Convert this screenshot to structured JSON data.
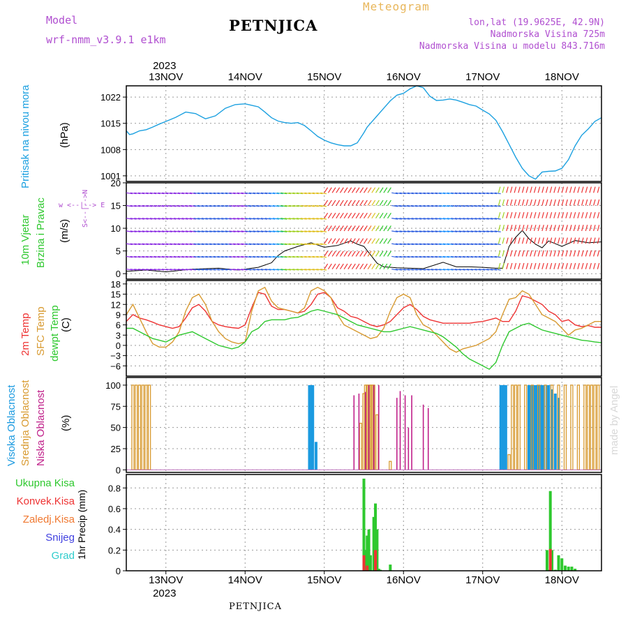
{
  "header": {
    "model_label": "Model",
    "model_name": "wrf-nmm_v3.9.1  e1km",
    "title": "PETNJICA",
    "meteogram_label": "Meteogram",
    "lonlat": "lon,lat (19.9625E, 42.9N)",
    "altitude": "Nadmorska Visina 725m",
    "model_altitude": "Nadmorska Visina u modelu 843.716m"
  },
  "footer": {
    "station": "PETNJICA",
    "signature": "made by Angel"
  },
  "time_axis": {
    "year": "2023",
    "days": [
      "13NOV",
      "14NOV",
      "15NOV",
      "16NOV",
      "17NOV",
      "18NOV"
    ],
    "day_offsets_h": [
      12,
      36,
      60,
      84,
      108,
      132
    ],
    "range_h": [
      0,
      144
    ]
  },
  "panel_labels": {
    "pressure": {
      "name": "Pritisak na nivou mora",
      "unit": "(hPa)"
    },
    "wind": {
      "name1": "10m Vjetar",
      "name2": "Brzina i Pravac",
      "unit": "(m/s)",
      "compass": "w <--|--> E",
      "compass2": "S<--|-->N"
    },
    "temp": {
      "l1": "2m Temp",
      "l2": "SFC Temp",
      "l3": "dewpt Temp",
      "unit": "(C)"
    },
    "cloud": {
      "l1": "Visoka Oblacnost",
      "l2": "Srednja Oblacnost",
      "l3": "Niska Oblacnost",
      "unit": "(%)"
    },
    "precip": {
      "unit": "1hr Precip (mm)",
      "legend": [
        "Ukupna Kisa",
        "Konvek.Kisa",
        "Zaledj.Kisa",
        "Snijeg",
        "Grad"
      ]
    }
  },
  "colors": {
    "pressure": "#1ba0e0",
    "t2m": "#ee3333",
    "tsfc": "#d89a30",
    "dewpt": "#2ec82e",
    "cloud_high": "#1b9ae0",
    "cloud_mid": "#d89a30",
    "cloud_low": "#c0208a",
    "precip_total": "#2ec82e",
    "precip_conv": "#ee3333",
    "precip_frz": "#f07830",
    "snow": "#4040e0",
    "hail": "#2ecccc",
    "purple_label": "#b04fd0"
  },
  "chart_data": [
    {
      "type": "line",
      "title": "Pritisak na nivou mora",
      "ylabel": "(hPa)",
      "ylim": [
        999.5,
        1025
      ],
      "yticks": [
        1001,
        1008,
        1015,
        1022
      ],
      "grid": true,
      "series": [
        {
          "name": "Pritisak na nivou mora",
          "x": [
            0,
            1,
            2,
            4,
            6,
            8,
            10,
            12,
            15,
            18,
            21,
            24,
            27,
            30,
            33,
            36,
            38,
            40,
            42,
            44,
            46,
            48,
            50,
            52,
            54,
            56,
            58,
            60,
            62,
            64,
            66,
            68,
            70,
            72,
            73,
            74,
            76,
            78,
            80,
            82,
            84,
            86,
            88,
            90,
            92,
            94,
            96,
            98,
            100,
            102,
            104,
            106,
            108,
            110,
            112,
            114,
            116,
            118,
            120,
            122,
            124,
            126,
            128,
            130,
            132,
            134,
            136,
            138,
            140,
            142,
            144
          ],
          "values": [
            1013,
            1012,
            1012.2,
            1013,
            1013.3,
            1014,
            1014.8,
            1015.5,
            1016.6,
            1018,
            1017.6,
            1016.2,
            1017,
            1019,
            1020,
            1020.2,
            1019.8,
            1019.4,
            1018,
            1016.5,
            1015.6,
            1015.2,
            1015,
            1015.2,
            1014.4,
            1013,
            1011.5,
            1010.5,
            1009.8,
            1009.3,
            1009,
            1009,
            1009.8,
            1012.5,
            1014,
            1015,
            1017,
            1019,
            1021,
            1022.5,
            1023,
            1024.2,
            1025,
            1024.5,
            1022.2,
            1021.1,
            1021.2,
            1021.5,
            1021.2,
            1020.6,
            1020,
            1019.6,
            1018.5,
            1017.5,
            1015.8,
            1012.8,
            1009.4,
            1006,
            1003,
            1001,
            1000.1,
            1002,
            1002.2,
            1002.3,
            1003,
            1005.3,
            1009,
            1011.8,
            1013.5,
            1015.5,
            1016.5
          ]
        }
      ]
    },
    {
      "type": "line",
      "title": "10m Vjetar Brzina i Pravac",
      "ylabel": "(m/s)",
      "ylim": [
        -1.2,
        20
      ],
      "yticks": [
        0,
        5,
        10,
        15,
        20
      ],
      "grid": true,
      "series": [
        {
          "name": "speed",
          "x": [
            0,
            6,
            12,
            20,
            28,
            34,
            40,
            44,
            46,
            48,
            52,
            56,
            60,
            64,
            68,
            70,
            72,
            76,
            78,
            82,
            86,
            90,
            96,
            100,
            104,
            108,
            112,
            114,
            116,
            118,
            120,
            122,
            124,
            126,
            128,
            132,
            136,
            140,
            144
          ],
          "values": [
            0.5,
            0.8,
            0.4,
            1,
            1.2,
            0.8,
            1.4,
            2.4,
            4,
            5,
            6,
            6.8,
            5.8,
            6.2,
            7.2,
            6.5,
            6,
            2.3,
            1.5,
            1.3,
            1.2,
            1.1,
            2.5,
            1.5,
            1.5,
            1.4,
            1.2,
            1.2,
            6,
            8,
            9.5,
            7.7,
            6.5,
            5.7,
            7.2,
            6,
            7.3,
            6.8,
            7
          ]
        }
      ]
    },
    {
      "type": "line",
      "title": "Temperatura",
      "ylabel": "(C)",
      "ylim": [
        -9,
        19
      ],
      "yticks": [
        -6,
        -3,
        0,
        3,
        6,
        9,
        12,
        15,
        18
      ],
      "grid": true,
      "series": [
        {
          "name": "2m Temp",
          "x": [
            0,
            2,
            4,
            6,
            8,
            10,
            12,
            14,
            16,
            18,
            20,
            22,
            24,
            26,
            28,
            30,
            32,
            34,
            36,
            38,
            40,
            42,
            44,
            46,
            48,
            50,
            52,
            54,
            56,
            58,
            60,
            62,
            64,
            66,
            68,
            70,
            72,
            74,
            76,
            78,
            80,
            82,
            84,
            86,
            88,
            90,
            92,
            94,
            96,
            98,
            100,
            102,
            104,
            106,
            108,
            110,
            112,
            114,
            116,
            118,
            120,
            122,
            124,
            126,
            128,
            130,
            132,
            134,
            136,
            138,
            140,
            142,
            144
          ],
          "values": [
            7,
            9,
            8,
            7.5,
            6.8,
            6,
            5.5,
            5,
            5.5,
            8,
            11,
            12,
            10,
            7,
            6,
            5.5,
            5.2,
            5,
            6,
            11,
            15.5,
            15,
            11.5,
            10.5,
            10.5,
            10,
            9.5,
            10,
            12,
            15,
            15.5,
            14,
            11,
            10,
            8.5,
            8,
            7,
            6,
            5.5,
            6,
            7,
            9,
            11,
            12,
            10.5,
            8.5,
            7.5,
            7,
            6.5,
            6.5,
            6.5,
            6.5,
            6.5,
            6.8,
            7,
            7.5,
            8,
            7,
            7,
            10,
            14.5,
            14,
            13,
            12,
            10,
            9,
            7,
            7.5,
            6,
            5.5,
            5.8,
            5.3,
            5.3
          ]
        },
        {
          "name": "SFC Temp",
          "x": [
            0,
            2,
            4,
            6,
            8,
            10,
            12,
            14,
            16,
            18,
            20,
            22,
            24,
            26,
            28,
            30,
            32,
            34,
            36,
            38,
            40,
            42,
            44,
            46,
            48,
            50,
            52,
            54,
            56,
            58,
            60,
            62,
            64,
            66,
            68,
            70,
            72,
            74,
            76,
            78,
            80,
            82,
            84,
            86,
            88,
            90,
            92,
            94,
            96,
            98,
            100,
            102,
            104,
            106,
            108,
            110,
            112,
            114,
            116,
            118,
            120,
            122,
            124,
            126,
            128,
            130,
            132,
            134,
            136,
            138,
            140,
            142,
            144
          ],
          "values": [
            9,
            12,
            8,
            4,
            0.5,
            -0.5,
            -0.5,
            1,
            4,
            10,
            14,
            15,
            12,
            7,
            4,
            2,
            1,
            0.5,
            1,
            10,
            16,
            17,
            13,
            11,
            10.5,
            10,
            9.5,
            11,
            16,
            17,
            16,
            14,
            9,
            6,
            5,
            4,
            3,
            2,
            2.5,
            5,
            10,
            14,
            15,
            14,
            9,
            6,
            5,
            3,
            1,
            -1,
            -2,
            -1,
            -0.5,
            0,
            1,
            2,
            4,
            9,
            13.5,
            14,
            16,
            15,
            12,
            9,
            8,
            7,
            5,
            3,
            4.5,
            5,
            6,
            7,
            7
          ]
        },
        {
          "name": "dewpt Temp",
          "x": [
            0,
            2,
            4,
            6,
            8,
            10,
            12,
            14,
            16,
            18,
            20,
            22,
            24,
            26,
            28,
            30,
            32,
            34,
            36,
            38,
            40,
            42,
            44,
            46,
            48,
            50,
            52,
            54,
            56,
            58,
            60,
            62,
            64,
            66,
            68,
            70,
            72,
            74,
            76,
            78,
            80,
            82,
            84,
            86,
            88,
            90,
            92,
            94,
            96,
            98,
            100,
            102,
            104,
            106,
            108,
            110,
            112,
            114,
            116,
            118,
            120,
            122,
            124,
            126,
            128,
            130,
            132,
            134,
            136,
            138,
            140,
            142,
            144
          ],
          "values": [
            5,
            5,
            4,
            3,
            2,
            1.5,
            1,
            2,
            3,
            3.5,
            4,
            3,
            2,
            1,
            0,
            -0.5,
            -1,
            -0.5,
            1,
            4,
            5,
            7,
            7.5,
            7.5,
            7.5,
            8,
            8.2,
            9,
            10,
            10.5,
            10,
            9.5,
            9,
            8,
            7,
            6,
            5.5,
            5,
            4.5,
            4,
            4,
            4.5,
            5,
            5.5,
            5,
            4.5,
            4,
            3.5,
            2.5,
            1,
            -0.5,
            -2.5,
            -4,
            -5,
            -6,
            -7,
            -5,
            0,
            4,
            5,
            6,
            6.5,
            5.5,
            4.5,
            4,
            3.5,
            3,
            2.5,
            2,
            1.5,
            1.3,
            1,
            0.8
          ]
        }
      ]
    },
    {
      "type": "bar",
      "title": "Oblacnost",
      "ylabel": "(%)",
      "ylim": [
        -3,
        109
      ],
      "yticks": [
        0,
        25,
        50,
        75,
        100
      ],
      "grid": true,
      "series": [
        {
          "name": "Visoka Oblacnost",
          "x": [
            55.5,
            56,
            56.5,
            57.5,
            113.5,
            114,
            114.5,
            115,
            122,
            122.5,
            123,
            123.5,
            124,
            124.5,
            125,
            125.5,
            126,
            126.5,
            127.5,
            128,
            129,
            130,
            131
          ],
          "values": [
            100,
            100,
            100,
            33,
            100,
            100,
            100,
            100,
            100,
            100,
            100,
            100,
            100,
            100,
            100,
            100,
            100,
            100,
            100,
            100,
            95,
            90,
            85
          ]
        },
        {
          "name": "Srednja Oblacnost",
          "x": [
            2,
            3,
            4,
            5,
            6,
            7,
            71,
            72,
            72.5,
            73,
            73.5,
            74,
            74.5,
            75,
            76,
            80,
            116,
            117,
            118,
            119,
            121,
            123,
            125,
            127,
            129,
            131,
            133,
            135,
            137,
            139,
            140,
            141,
            142,
            143
          ],
          "values": [
            100,
            100,
            100,
            100,
            100,
            100,
            55,
            90,
            100,
            100,
            100,
            100,
            100,
            100,
            65,
            10,
            18,
            100,
            100,
            100,
            100,
            100,
            100,
            100,
            100,
            100,
            100,
            100,
            100,
            100,
            100,
            100,
            100,
            100
          ]
        },
        {
          "name": "Niska Oblacnost",
          "x": [
            69,
            70.5,
            72.5,
            73.5,
            75,
            76.5,
            82,
            83,
            84.5,
            85.5,
            86.5,
            90,
            91.5
          ],
          "values": [
            88,
            90,
            92,
            100,
            100,
            100,
            85,
            93,
            88,
            50,
            88,
            77,
            73
          ]
        }
      ]
    },
    {
      "type": "bar",
      "title": "1hr Precip",
      "ylabel": "1hr Precip (mm)",
      "ylim": [
        0,
        0.93
      ],
      "yticks": [
        0,
        0.2,
        0.4,
        0.6,
        0.8
      ],
      "grid": true,
      "series": [
        {
          "name": "Ukupna Kisa",
          "x": [
            72,
            72.5,
            73,
            73.5,
            74,
            75,
            75.5,
            76,
            76.5,
            77,
            80,
            127.5,
            128,
            128.5,
            129,
            130,
            131,
            132,
            133,
            134,
            135,
            136
          ],
          "values": [
            0.89,
            0.2,
            0.34,
            0.4,
            0.15,
            0.52,
            0.65,
            0.4,
            0.02,
            0.01,
            0.06,
            0.2,
            0.01,
            0.77,
            0.2,
            0.01,
            0.15,
            0.12,
            0.05,
            0.04,
            0.04,
            0.02
          ]
        },
        {
          "name": "Konvek.Kisa",
          "x": [
            72,
            73,
            75.5,
            128.5
          ],
          "values": [
            0.15,
            0.05,
            0.2,
            0.21
          ]
        }
      ]
    }
  ]
}
